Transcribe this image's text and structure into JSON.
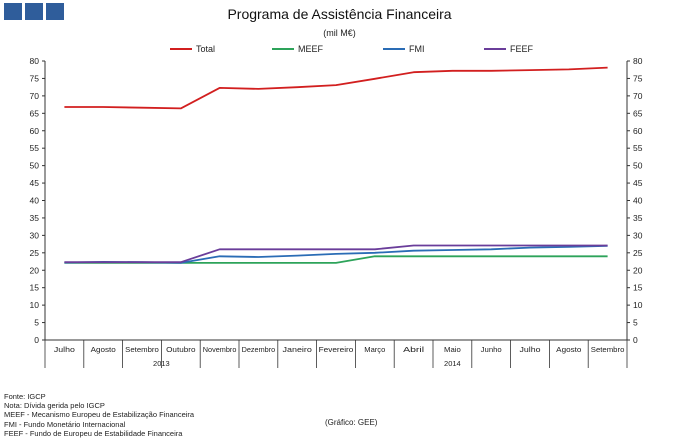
{
  "logo": {
    "blocks": 3,
    "color": "#2f5d9b"
  },
  "chart_data": {
    "type": "line",
    "title": "Programa de Assistência Financeira",
    "subtitle": "(mil M€)",
    "categories": [
      "Julho",
      "Agosto",
      "Setembro",
      "Outubro",
      "Novembro",
      "Dezembro",
      "Janeiro",
      "Fevereiro",
      "Março",
      "Abril",
      "Maio",
      "Junho",
      "Julho",
      "Agosto",
      "Setembro"
    ],
    "year_groups": [
      {
        "label": "2013",
        "start": 0,
        "end": 5
      },
      {
        "label": "2014",
        "start": 6,
        "end": 14
      }
    ],
    "series": [
      {
        "name": "Total",
        "color": "#d21f1f",
        "values": [
          66.8,
          66.8,
          66.6,
          66.4,
          72.3,
          72.0,
          72.5,
          73.1,
          74.9,
          76.8,
          77.2,
          77.2,
          77.4,
          77.6,
          78.1
        ]
      },
      {
        "name": "MEEF",
        "color": "#2da35a",
        "values": [
          22.1,
          22.1,
          22.1,
          22.1,
          22.1,
          22.1,
          22.1,
          22.1,
          24.0,
          24.0,
          24.0,
          24.0,
          24.0,
          24.0,
          24.0
        ]
      },
      {
        "name": "FMI",
        "color": "#2a6cb5",
        "values": [
          22.2,
          22.4,
          22.3,
          22.1,
          24.0,
          23.8,
          24.2,
          24.7,
          25.0,
          25.6,
          25.8,
          26.0,
          26.5,
          26.7,
          27.0
        ]
      },
      {
        "name": "FEEF",
        "color": "#6a3d9a",
        "values": [
          22.3,
          22.3,
          22.3,
          22.3,
          26.0,
          26.0,
          26.0,
          26.0,
          26.0,
          27.1,
          27.1,
          27.1,
          27.1,
          27.1,
          27.1
        ]
      }
    ],
    "ylim": [
      0,
      80
    ],
    "yticks": [
      0,
      5,
      10,
      15,
      20,
      25,
      30,
      35,
      40,
      45,
      50,
      55,
      60,
      65,
      70,
      75,
      80
    ],
    "dual_y_axis": true,
    "grid": false,
    "legend_position": "top"
  },
  "notes": [
    "Fonte: IGCP",
    "Nota: Dívida gerida pelo IGCP",
    "MEEF - Mecanismo Europeu de Estabilização Financeira",
    "FMI - Fundo Monetário Internacional",
    "FEEF - Fundo de Europeu de Estabilidade Financeira"
  ],
  "source": "(Gráfico: GEE)"
}
